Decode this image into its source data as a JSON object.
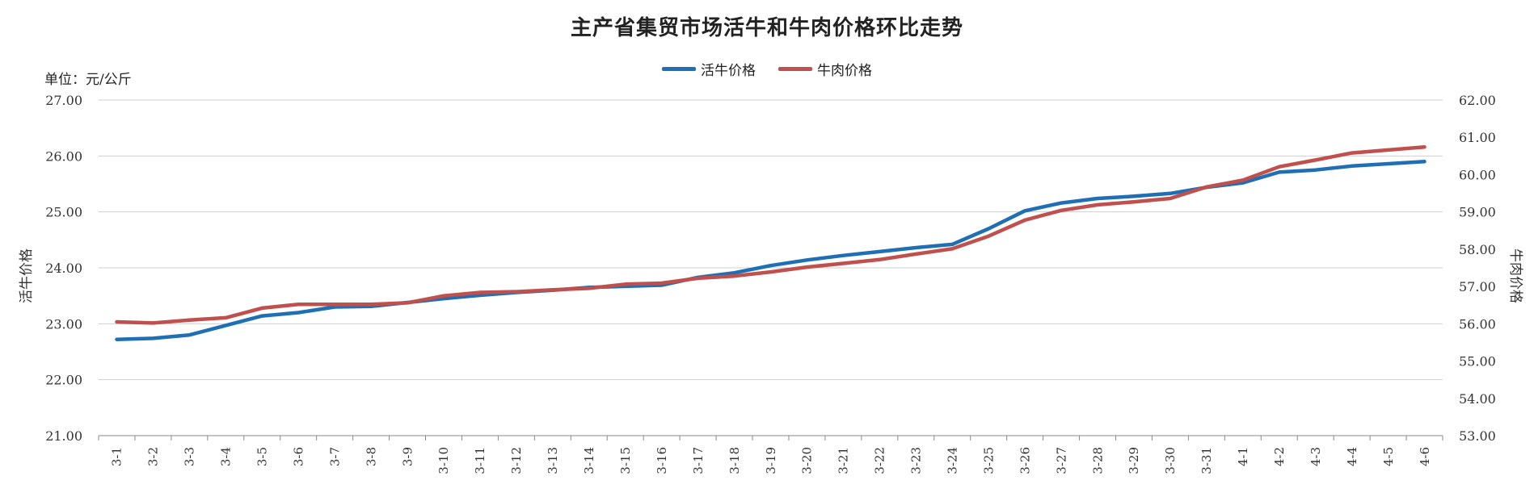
{
  "chart_data": {
    "type": "line",
    "title": "主产省集贸市场活牛和牛肉价格环比走势",
    "unit": "单位：元/公斤",
    "ylabel_left": "活牛价格",
    "ylabel_right": "牛肉价格",
    "ylim_left": [
      21,
      27
    ],
    "ylim_right": [
      53,
      62
    ],
    "yticks_left": [
      "21.00",
      "22.00",
      "23.00",
      "24.00",
      "25.00",
      "26.00",
      "27.00"
    ],
    "yticks_right": [
      "53.00",
      "54.00",
      "55.00",
      "56.00",
      "57.00",
      "58.00",
      "59.00",
      "60.00",
      "61.00",
      "62.00"
    ],
    "grid": true,
    "legend_position": "top-center",
    "categories": [
      "3-1",
      "3-2",
      "3-3",
      "3-4",
      "3-5",
      "3-6",
      "3-7",
      "3-8",
      "3-9",
      "3-10",
      "3-11",
      "3-12",
      "3-13",
      "3-14",
      "3-15",
      "3-16",
      "3-17",
      "3-18",
      "3-19",
      "3-20",
      "3-21",
      "3-22",
      "3-23",
      "3-24",
      "3-25",
      "3-26",
      "3-27",
      "3-28",
      "3-29",
      "3-30",
      "3-31",
      "4-1",
      "4-2",
      "4-3",
      "4-4",
      "4-5",
      "4-6"
    ],
    "series": [
      {
        "name": "活牛价格",
        "axis": "left",
        "color": "#1f6fb5",
        "values": [
          22.72,
          22.74,
          22.8,
          22.97,
          23.14,
          23.2,
          23.3,
          23.31,
          23.38,
          23.45,
          23.51,
          23.56,
          23.6,
          23.65,
          23.67,
          23.69,
          23.83,
          23.91,
          24.04,
          24.14,
          24.22,
          24.29,
          24.36,
          24.42,
          24.7,
          25.02,
          25.16,
          25.24,
          25.28,
          25.33,
          25.44,
          25.52,
          25.71,
          25.75,
          25.82,
          25.86,
          25.9
        ]
      },
      {
        "name": "牛肉价格",
        "axis": "right",
        "color": "#c0504d",
        "values": [
          56.05,
          56.02,
          56.1,
          56.16,
          56.42,
          56.52,
          56.52,
          56.52,
          56.56,
          56.75,
          56.84,
          56.86,
          56.91,
          56.95,
          57.06,
          57.09,
          57.22,
          57.28,
          57.39,
          57.52,
          57.62,
          57.72,
          57.87,
          58.01,
          58.35,
          58.78,
          59.04,
          59.19,
          59.27,
          59.36,
          59.67,
          59.85,
          60.21,
          60.39,
          60.58,
          60.66,
          60.74
        ]
      }
    ]
  }
}
